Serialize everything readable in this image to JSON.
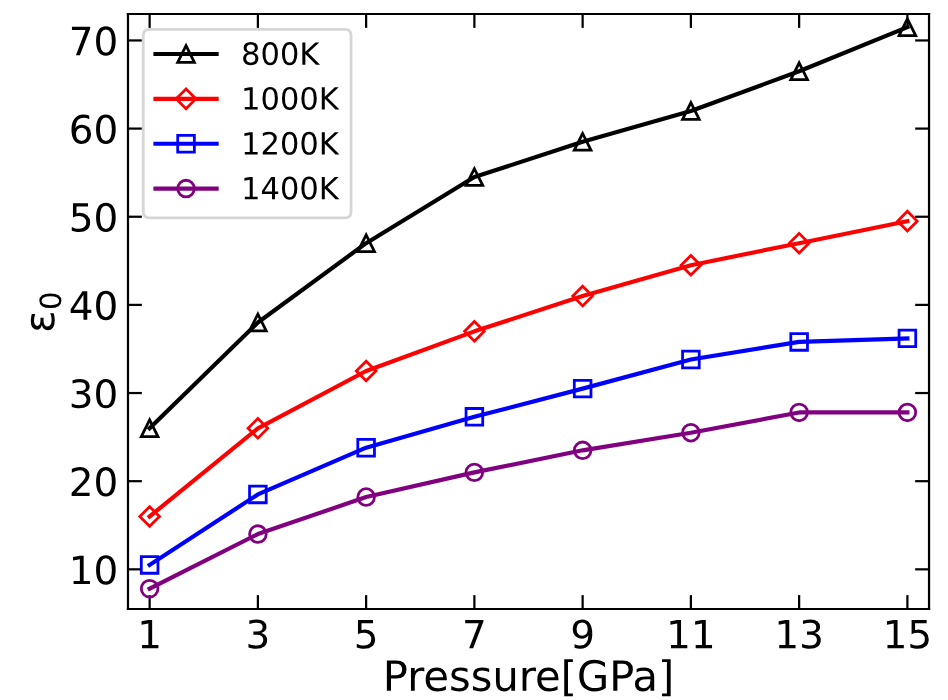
{
  "chart_data": {
    "type": "line",
    "xlabel": "Pressure[GPa]",
    "ylabel": "ε$_{0}$",
    "x": [
      1,
      3,
      5,
      7,
      9,
      11,
      13,
      15
    ],
    "xlim": [
      0.6,
      15.4
    ],
    "xticks": [
      1,
      3,
      5,
      7,
      9,
      11,
      13,
      15
    ],
    "ylim": [
      5.5,
      73
    ],
    "yticks": [
      10,
      20,
      30,
      40,
      50,
      60,
      70
    ],
    "legend": "top left",
    "grid": false,
    "series": [
      {
        "name": "800K",
        "color": "#000000",
        "marker": "triangle",
        "values": [
          26,
          38,
          47,
          54.5,
          58.5,
          62,
          66.5,
          71.5
        ]
      },
      {
        "name": "1000K",
        "color": "#ff0000",
        "marker": "diamond",
        "values": [
          16,
          26,
          32.5,
          37,
          41,
          44.5,
          47,
          49.5
        ]
      },
      {
        "name": "1200K",
        "color": "#0000ff",
        "marker": "square",
        "values": [
          10.5,
          18.5,
          23.8,
          27.3,
          30.5,
          33.8,
          35.8,
          36.2
        ]
      },
      {
        "name": "1400K",
        "color": "#800080",
        "marker": "circle",
        "values": [
          7.8,
          14,
          18.2,
          21,
          23.5,
          25.5,
          27.8,
          27.8
        ]
      }
    ]
  }
}
